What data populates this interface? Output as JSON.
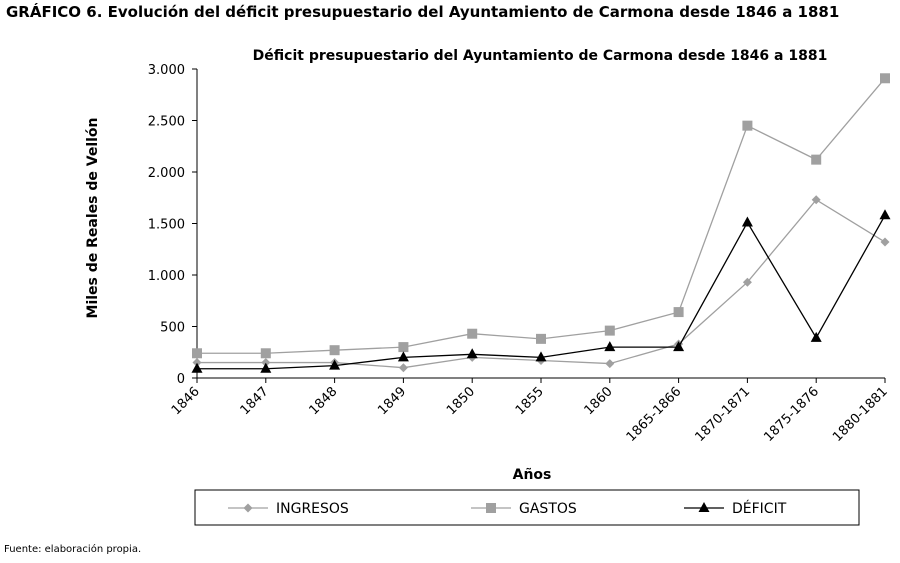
{
  "figure": {
    "caption": "GRÁFICO 6. Evolución del déficit presupuestario del Ayuntamiento de Carmona desde 1846 a 1881",
    "source": "Fuente: elaboración propia."
  },
  "chart_data": {
    "type": "line",
    "title": "Déficit presupuestario del Ayuntamiento de Carmona desde 1846 a 1881",
    "xlabel": "Años",
    "ylabel": "Miles de Reales de Vellón",
    "categories": [
      "1846",
      "1847",
      "1848",
      "1849",
      "1850",
      "1855",
      "1860",
      "1865-1866",
      "1870-1871",
      "1875-1876",
      "1880-1881"
    ],
    "ylim": [
      0,
      3000
    ],
    "yticks": [
      0,
      500,
      1000,
      1500,
      2000,
      2500,
      3000
    ],
    "ytick_labels": [
      "0",
      "500",
      "1.000",
      "1.500",
      "2.000",
      "2.500",
      "3.000"
    ],
    "grid": false,
    "legend_position": "bottom",
    "series": [
      {
        "name": "INGRESOS",
        "color": "#a0a0a0",
        "marker": "diamond",
        "values": [
          150,
          150,
          150,
          100,
          200,
          170,
          140,
          330,
          930,
          1730,
          1320
        ]
      },
      {
        "name": "GASTOS",
        "color": "#a0a0a0",
        "marker": "square",
        "values": [
          240,
          240,
          270,
          300,
          430,
          380,
          460,
          640,
          2450,
          2120,
          2910
        ]
      },
      {
        "name": "DÉFICIT",
        "color": "#000000",
        "marker": "triangle",
        "values": [
          90,
          90,
          120,
          200,
          230,
          200,
          300,
          300,
          1510,
          390,
          1580
        ]
      }
    ]
  }
}
